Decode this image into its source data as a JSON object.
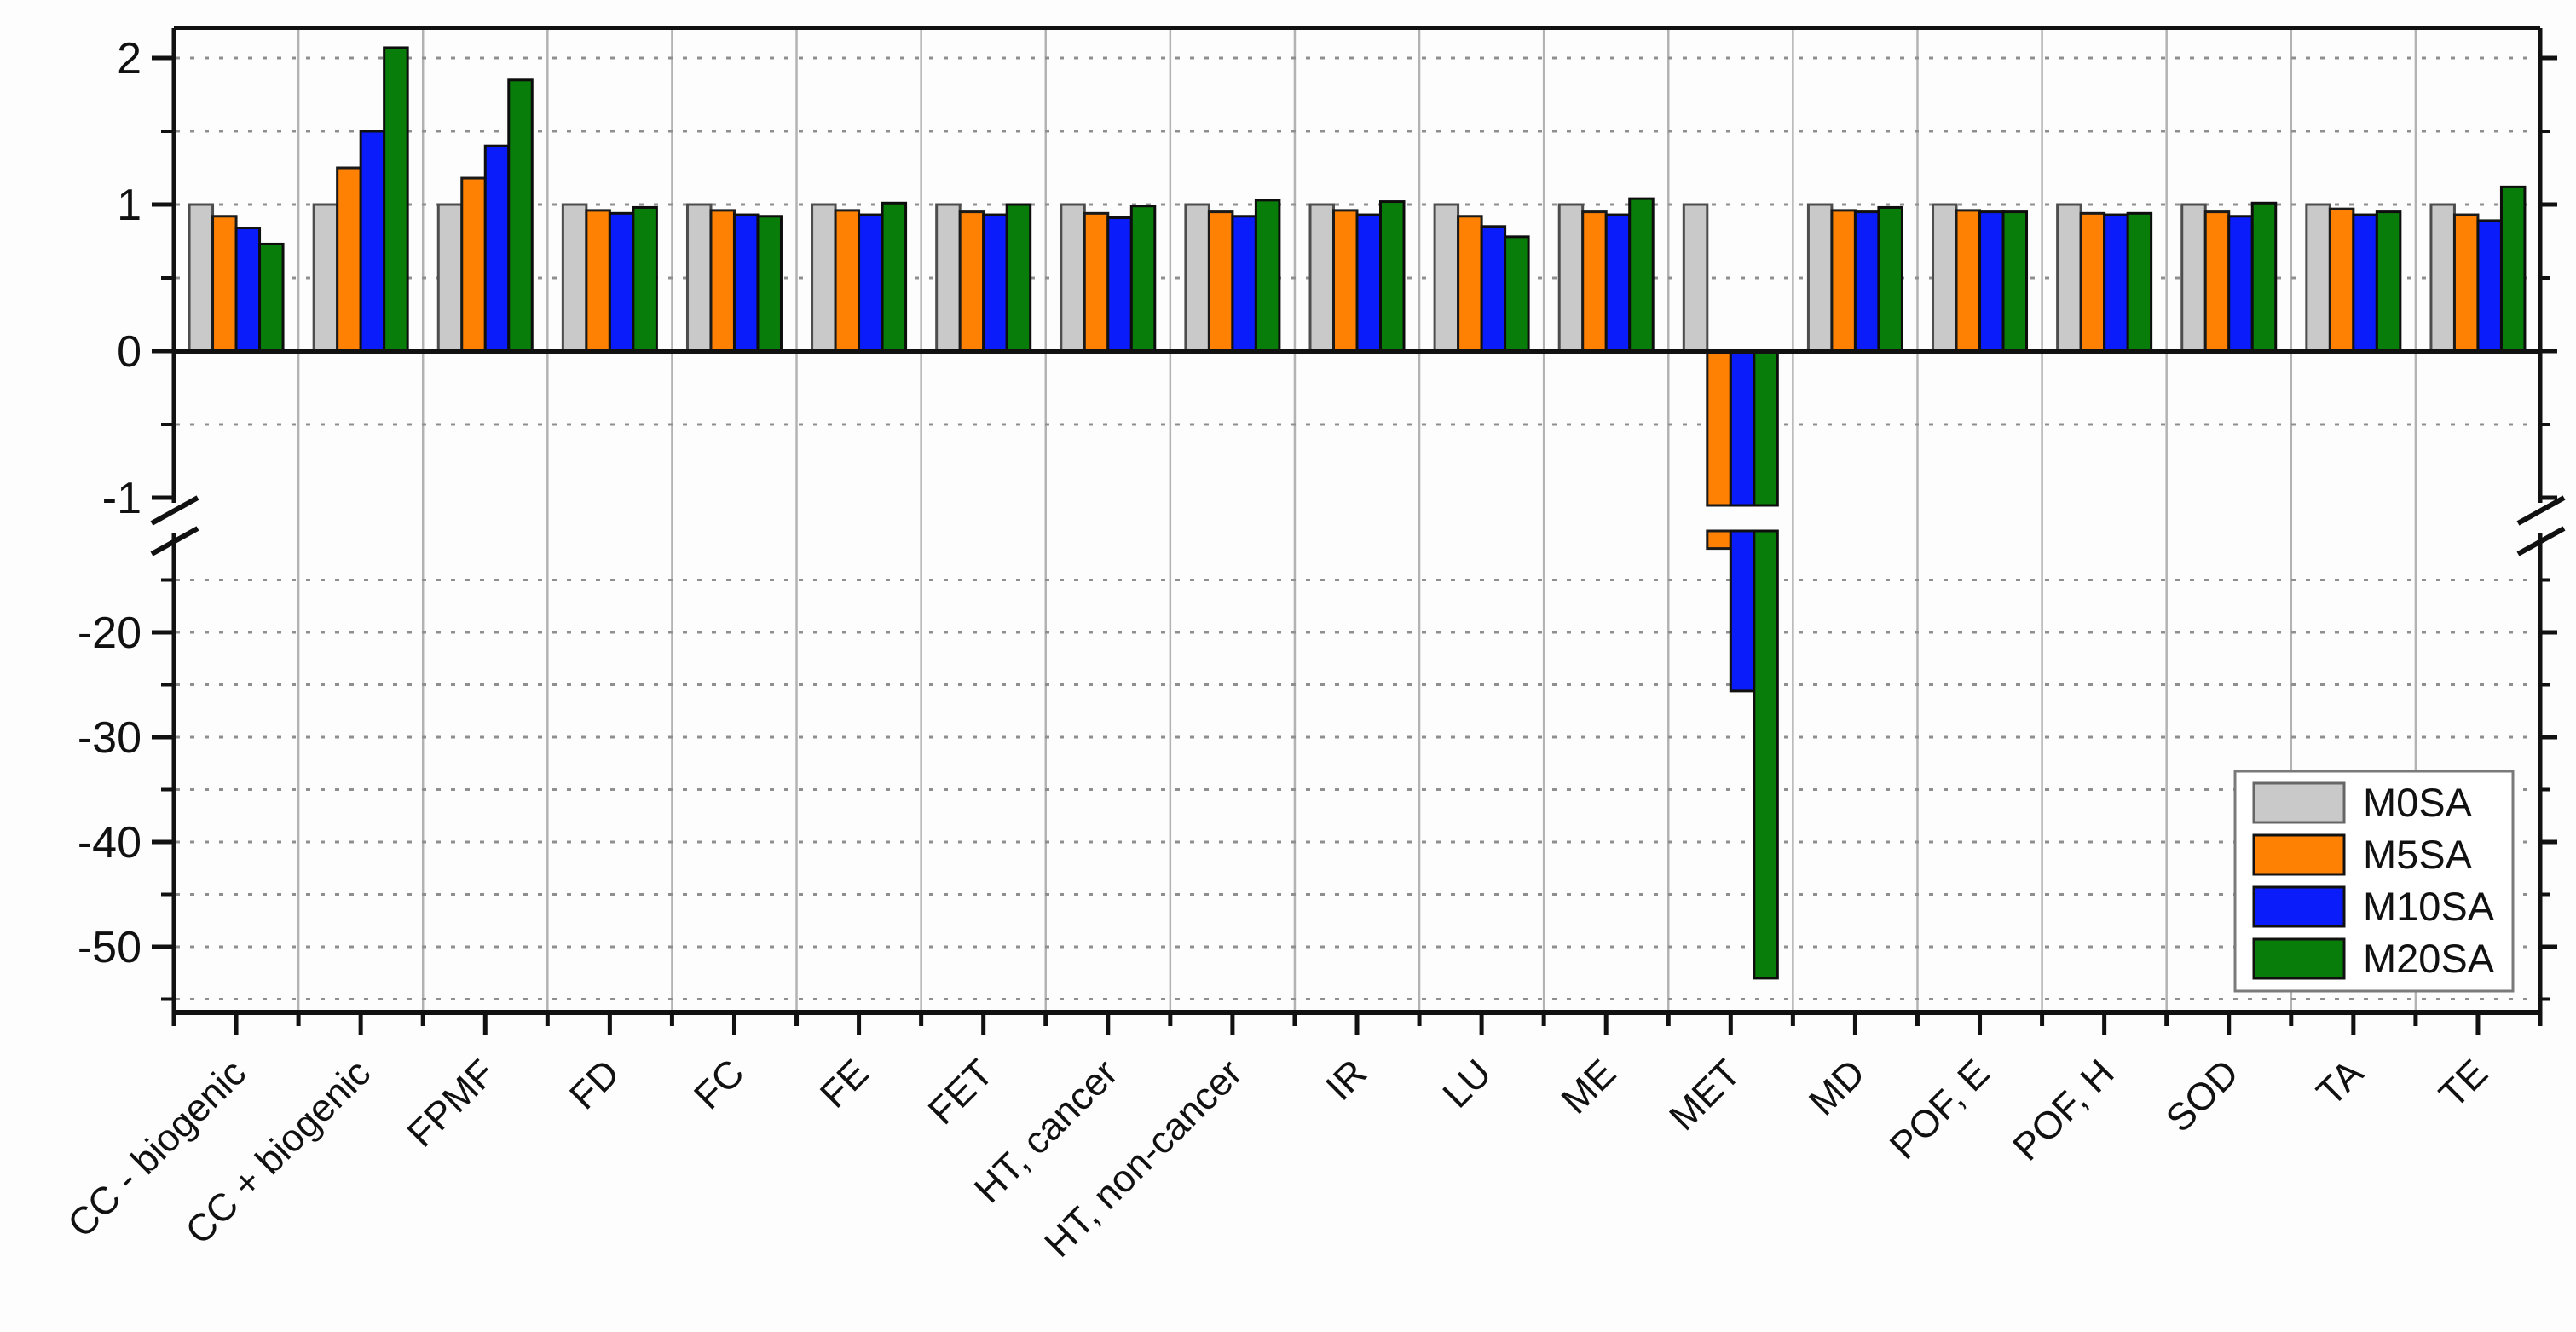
{
  "chart_data": {
    "type": "bar",
    "title": "",
    "xlabel": "",
    "ylabel": "",
    "grid": true,
    "legend_position": "bottom-right",
    "categories": [
      "CC - biogenic",
      "CC + biogenic",
      "FPMF",
      "FD",
      "FC",
      "FE",
      "FET",
      "HT, cancer",
      "HT, non-cancer",
      "IR",
      "LU",
      "ME",
      "MET",
      "MD",
      "POF, E",
      "POF, H",
      "SOD",
      "TA",
      "TE"
    ],
    "series": [
      {
        "name": "M0SA",
        "color": "#c9c9c9",
        "border": "#4d4d4d",
        "values": [
          1.0,
          1.0,
          1.0,
          1.0,
          1.0,
          1.0,
          1.0,
          1.0,
          1.0,
          1.0,
          1.0,
          1.0,
          1.0,
          1.0,
          1.0,
          1.0,
          1.0,
          1.0,
          1.0
        ]
      },
      {
        "name": "M5SA",
        "color": "#ff8103",
        "border": "#1a1a1a",
        "values": [
          0.92,
          1.25,
          1.18,
          0.96,
          0.96,
          0.96,
          0.95,
          0.94,
          0.95,
          0.96,
          0.92,
          0.95,
          -12.0,
          0.96,
          0.96,
          0.94,
          0.95,
          0.97,
          0.93
        ]
      },
      {
        "name": "M10SA",
        "color": "#0a1cfa",
        "border": "#101010",
        "values": [
          0.84,
          1.5,
          1.4,
          0.94,
          0.93,
          0.93,
          0.93,
          0.91,
          0.92,
          0.93,
          0.85,
          0.93,
          -25.6,
          0.95,
          0.95,
          0.93,
          0.92,
          0.93,
          0.89
        ]
      },
      {
        "name": "M20SA",
        "color": "#097d09",
        "border": "#0d0d0d",
        "values": [
          0.73,
          2.07,
          1.85,
          0.98,
          0.92,
          1.01,
          1.0,
          0.99,
          1.03,
          1.02,
          0.78,
          1.04,
          -53.0,
          0.98,
          0.95,
          0.94,
          1.01,
          0.95,
          1.12
        ]
      }
    ],
    "y_axis": {
      "upper_segment": {
        "range": [
          -1.05,
          2.2
        ],
        "major_ticks": [
          2,
          1,
          0,
          -1
        ],
        "minor_ticks": [
          1.5,
          0.5,
          -0.5
        ],
        "gridlines": [
          2,
          1.5,
          1,
          0.5,
          -0.5
        ]
      },
      "axis_break": {
        "between": [
          -1.05,
          -10
        ]
      },
      "lower_segment": {
        "range": [
          -10,
          -56.5
        ],
        "major_ticks": [
          -20,
          -30,
          -40,
          -50
        ],
        "minor_ticks": [
          -15,
          -25,
          -35,
          -45,
          -55
        ],
        "gridlines": [
          -15,
          -20,
          -25,
          -30,
          -35,
          -40,
          -45,
          -50,
          -55
        ]
      }
    },
    "legend": {
      "entries": [
        "M0SA",
        "M5SA",
        "M10SA",
        "M20SA"
      ]
    },
    "colors": {
      "grid_vertical": "#b3b3b3",
      "grid_dashed": "#8f8f8f",
      "axis": "#111111",
      "legend_border": "#7a7a7a",
      "background": "#fdfdfd"
    }
  }
}
